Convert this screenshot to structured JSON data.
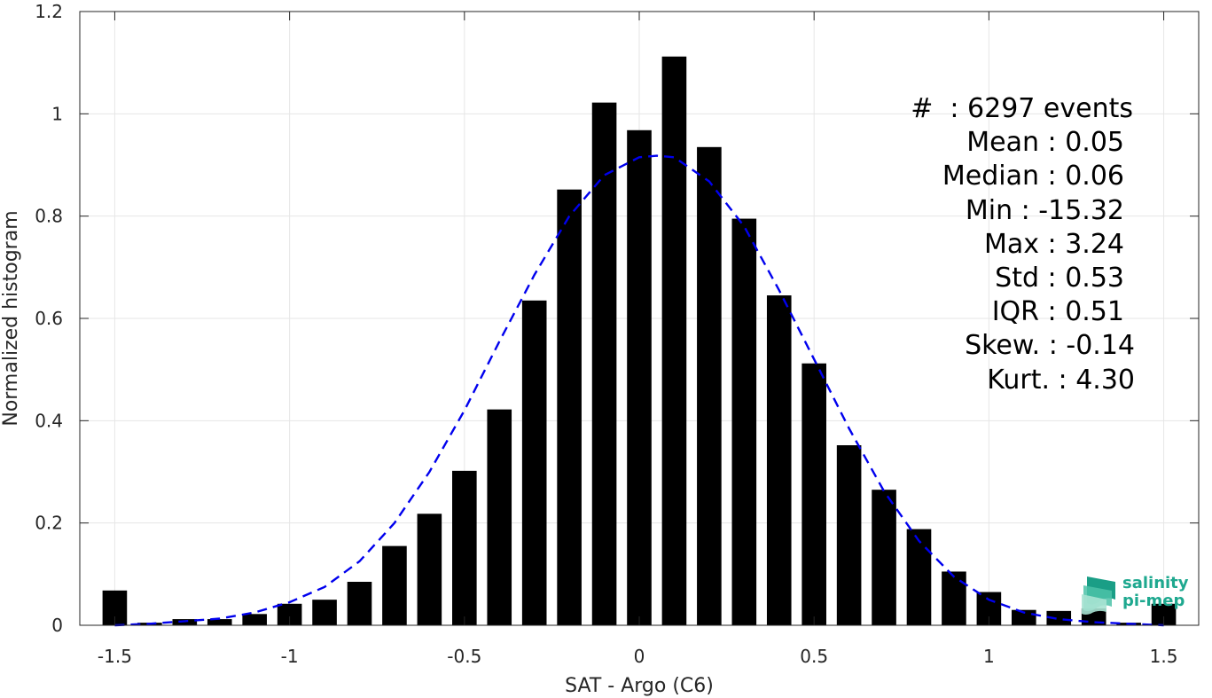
{
  "chart_data": {
    "type": "bar",
    "xlabel": "SAT - Argo (C6)",
    "ylabel": "Normalized histogram",
    "xlim": [
      -1.6,
      1.6
    ],
    "ylim": [
      0,
      1.2
    ],
    "x_ticks": [
      "-1.5",
      "-1",
      "-0.5",
      "0",
      "0.5",
      "1",
      "1.5"
    ],
    "x_tick_values": [
      -1.5,
      -1,
      -0.5,
      0,
      0.5,
      1,
      1.5
    ],
    "y_ticks": [
      "0",
      "0.2",
      "0.4",
      "0.6",
      "0.8",
      "1",
      "1.2"
    ],
    "y_tick_values": [
      0,
      0.2,
      0.4,
      0.6,
      0.8,
      1.0,
      1.2
    ],
    "grid": true,
    "bar_color": "#000000",
    "bars": {
      "x": [
        -1.5,
        -1.4,
        -1.3,
        -1.2,
        -1.1,
        -1.0,
        -0.9,
        -0.8,
        -0.7,
        -0.6,
        -0.5,
        -0.4,
        -0.3,
        -0.2,
        -0.1,
        0.0,
        0.1,
        0.2,
        0.3,
        0.4,
        0.5,
        0.6,
        0.7,
        0.8,
        0.9,
        1.0,
        1.1,
        1.2,
        1.3,
        1.4,
        1.5
      ],
      "values": [
        0.068,
        0.005,
        0.012,
        0.012,
        0.022,
        0.042,
        0.05,
        0.085,
        0.155,
        0.218,
        0.302,
        0.422,
        0.635,
        0.852,
        1.022,
        0.968,
        1.112,
        0.935,
        0.795,
        0.645,
        0.512,
        0.352,
        0.265,
        0.188,
        0.105,
        0.065,
        0.03,
        0.028,
        0.033,
        0.005,
        0.042
      ]
    },
    "fit_curve": {
      "style": "dashed",
      "color": "#0000ee",
      "x": [
        -1.5,
        -1.4,
        -1.3,
        -1.2,
        -1.1,
        -1.0,
        -0.9,
        -0.8,
        -0.7,
        -0.6,
        -0.5,
        -0.4,
        -0.3,
        -0.2,
        -0.1,
        0.0,
        0.05,
        0.1,
        0.2,
        0.3,
        0.4,
        0.5,
        0.6,
        0.7,
        0.8,
        0.9,
        1.0,
        1.1,
        1.2,
        1.3,
        1.4,
        1.5
      ],
      "values": [
        0.0,
        0.003,
        0.008,
        0.013,
        0.025,
        0.045,
        0.075,
        0.125,
        0.2,
        0.3,
        0.42,
        0.555,
        0.685,
        0.8,
        0.88,
        0.915,
        0.918,
        0.915,
        0.868,
        0.78,
        0.655,
        0.52,
        0.385,
        0.262,
        0.165,
        0.095,
        0.05,
        0.025,
        0.012,
        0.006,
        0.003,
        0.0
      ]
    }
  },
  "stats": {
    "count": "#  : 6297 events",
    "mean": "Mean : 0.05",
    "median": "Median : 0.06",
    "min": "Min : -15.32",
    "max": "Max : 3.24",
    "std": "Std : 0.53",
    "iqr": "IQR : 0.51",
    "skew": "Skew. : -0.14",
    "kurt": "Kurt. : 4.30"
  },
  "logo": {
    "line1": "salinity",
    "line2": "pi-mep",
    "color": "#1ea88f"
  }
}
